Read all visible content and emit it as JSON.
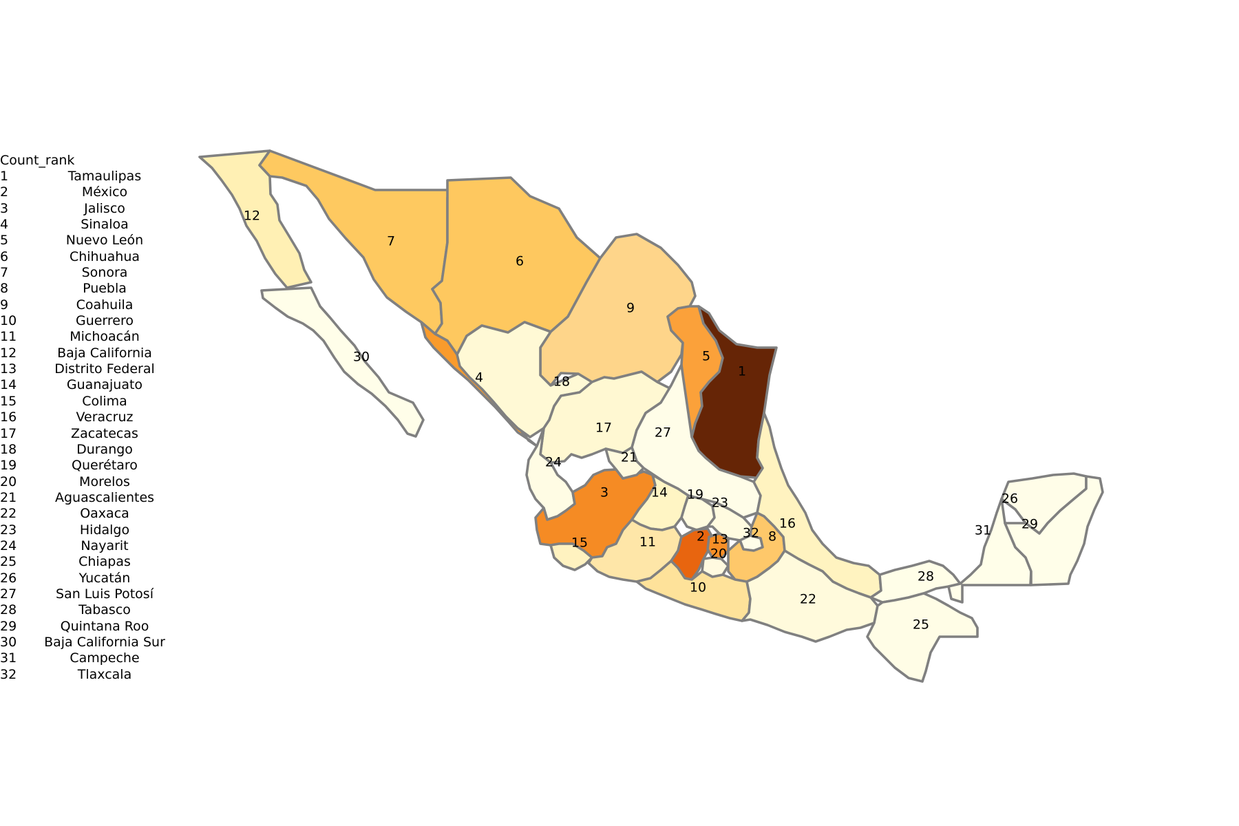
{
  "legend": {
    "header": "Count_rank",
    "rows": [
      {
        "rank": "1",
        "state": "Tamaulipas"
      },
      {
        "rank": "2",
        "state": "México"
      },
      {
        "rank": "3",
        "state": "Jalisco"
      },
      {
        "rank": "4",
        "state": "Sinaloa"
      },
      {
        "rank": "5",
        "state": "Nuevo León"
      },
      {
        "rank": "6",
        "state": "Chihuahua"
      },
      {
        "rank": "7",
        "state": "Sonora"
      },
      {
        "rank": "8",
        "state": "Puebla"
      },
      {
        "rank": "9",
        "state": "Coahuila"
      },
      {
        "rank": "10",
        "state": "Guerrero"
      },
      {
        "rank": "11",
        "state": "Michoacán"
      },
      {
        "rank": "12",
        "state": "Baja California"
      },
      {
        "rank": "13",
        "state": "Distrito Federal"
      },
      {
        "rank": "14",
        "state": "Guanajuato"
      },
      {
        "rank": "15",
        "state": "Colima"
      },
      {
        "rank": "16",
        "state": "Veracruz"
      },
      {
        "rank": "17",
        "state": "Zacatecas"
      },
      {
        "rank": "18",
        "state": "Durango"
      },
      {
        "rank": "19",
        "state": "Querétaro"
      },
      {
        "rank": "20",
        "state": "Morelos"
      },
      {
        "rank": "21",
        "state": "Aguascalientes"
      },
      {
        "rank": "22",
        "state": "Oaxaca"
      },
      {
        "rank": "23",
        "state": "Hidalgo"
      },
      {
        "rank": "24",
        "state": "Nayarit"
      },
      {
        "rank": "25",
        "state": "Chiapas"
      },
      {
        "rank": "26",
        "state": "Yucatán"
      },
      {
        "rank": "27",
        "state": "San Luis Potosí"
      },
      {
        "rank": "28",
        "state": "Tabasco"
      },
      {
        "rank": "29",
        "state": "Quintana Roo"
      },
      {
        "rank": "30",
        "state": "Baja California Sur"
      },
      {
        "rank": "31",
        "state": "Campeche"
      },
      {
        "rank": "32",
        "state": "Tlaxcala"
      }
    ]
  },
  "map": {
    "color_scale": "YlOrBr",
    "border_color": "#808080",
    "state_colors": {
      "1": "#662506",
      "2": "#e8650f",
      "3": "#f58b24",
      "4": "#f99b2c",
      "5": "#fba13a",
      "6": "#fec85f",
      "7": "#fec960",
      "8": "#fec86a",
      "9": "#fed58a",
      "10": "#fee29a",
      "11": "#fee6a8",
      "12": "#fff0b4",
      "13": "#f88f27",
      "14": "#fff5c4",
      "15": "#fff2c0",
      "16": "#fff3c0",
      "17": "#fff8d2",
      "18": "#fff9d5",
      "19": "#fffbdf",
      "20": "#fffae0",
      "21": "#fffade",
      "22": "#fffadc",
      "23": "#fffbe0",
      "24": "#fffce4",
      "25": "#fffde6",
      "26": "#fffde8",
      "27": "#fffde8",
      "28": "#fffee8",
      "29": "#fffee9",
      "30": "#fffee9",
      "31": "#fffee9",
      "32": "#fffee9"
    }
  }
}
